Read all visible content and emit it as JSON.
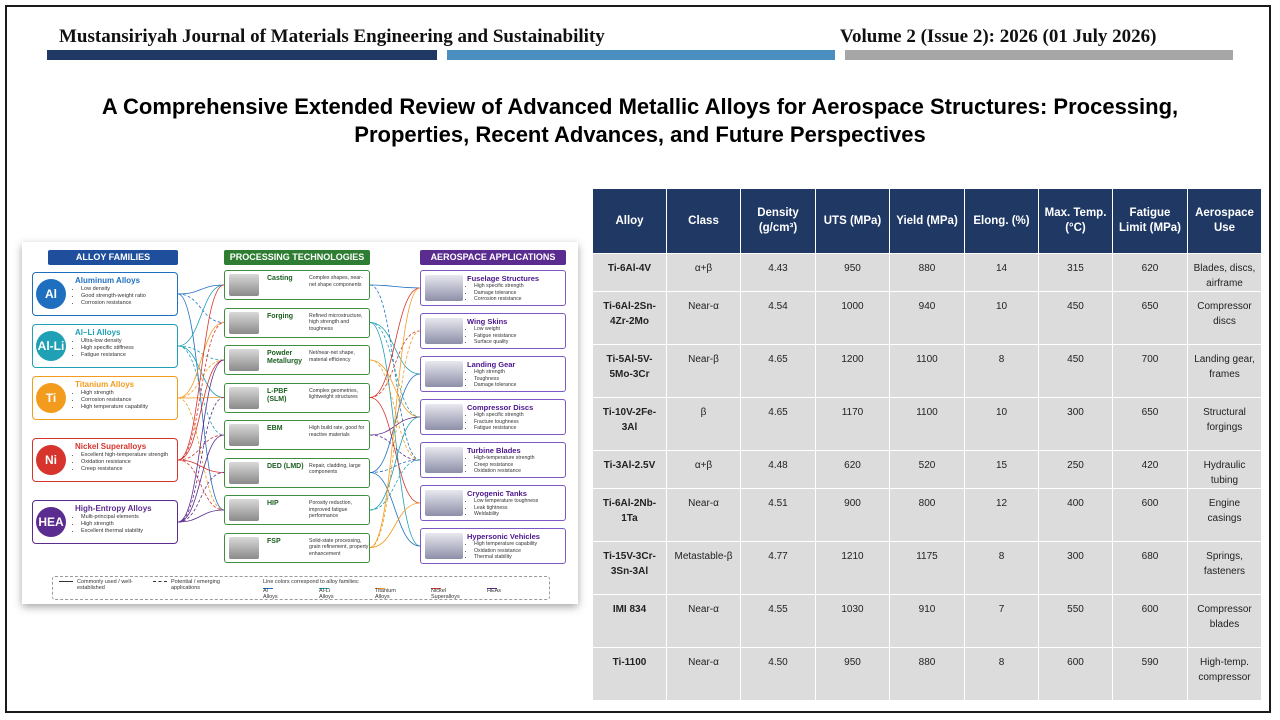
{
  "header": {
    "journal": "Mustansiriyah Journal of Materials Engineering and Sustainability",
    "volume": "Volume 2 (Issue 2): 2026 (01 July 2026)"
  },
  "title": "A Comprehensive Extended Review of Advanced Metallic Alloys for Aerospace Structures: Processing, Properties, Recent Advances, and Future Perspectives",
  "figure": {
    "headers": [
      "ALLOY FAMILIES",
      "PROCESSING TECHNOLOGIES",
      "AEROSPACE APPLICATIONS"
    ],
    "alloys": [
      {
        "badge": "Al",
        "name": "Aluminum Alloys",
        "color": "#1f6fc0",
        "points": [
          "Low density",
          "Good strength-weight ratio",
          "Corrosion resistance"
        ]
      },
      {
        "badge": "Al-Li",
        "name": "Al–Li Alloys",
        "color": "#1fa0b5",
        "points": [
          "Ultra-low density",
          "High specific stiffness",
          "Fatigue resistance"
        ]
      },
      {
        "badge": "Ti",
        "name": "Titanium Alloys",
        "color": "#f29b1d",
        "points": [
          "High strength",
          "Corrosion resistance",
          "High temperature capability"
        ]
      },
      {
        "badge": "Ni",
        "name": "Nickel Superalloys",
        "color": "#d6342c",
        "points": [
          "Excellent high-temperature strength",
          "Oxidation resistance",
          "Creep resistance"
        ]
      },
      {
        "badge": "HEA",
        "name": "High-Entropy Alloys",
        "color": "#5b2c8f",
        "points": [
          "Multi-principal elements",
          "High strength",
          "Excellent thermal stability"
        ]
      }
    ],
    "processes": [
      {
        "name": "Casting",
        "desc": "Complex shapes, near-net shape components",
        "icon": "casting-icon"
      },
      {
        "name": "Forging",
        "desc": "Refined microstructure, high strength and toughness",
        "icon": "forging-icon"
      },
      {
        "name": "Powder Metallurgy",
        "desc": "Net/near-net shape, material efficiency",
        "icon": "powder-icon"
      },
      {
        "name": "L-PBF (SLM)",
        "desc": "Complex geometries, lightweight structures",
        "icon": "laser-icon"
      },
      {
        "name": "EBM",
        "desc": "High build rate, good for reactive materials",
        "icon": "electron-beam-icon"
      },
      {
        "name": "DED (LMD)",
        "desc": "Repair, cladding, large components",
        "icon": "deposition-icon"
      },
      {
        "name": "HIP",
        "desc": "Porosity reduction, improved fatigue performance",
        "icon": "press-icon"
      },
      {
        "name": "FSP",
        "desc": "Solid-state processing, grain refinement, property enhancement",
        "icon": "friction-stir-icon"
      }
    ],
    "applications": [
      {
        "name": "Fuselage Structures",
        "points": [
          "High specific strength",
          "Damage tolerance",
          "Corrosion resistance"
        ]
      },
      {
        "name": "Wing Skins",
        "points": [
          "Low weight",
          "Fatigue resistance",
          "Surface quality"
        ]
      },
      {
        "name": "Landing Gear",
        "points": [
          "High strength",
          "Toughness",
          "Damage tolerance"
        ]
      },
      {
        "name": "Compressor Discs",
        "points": [
          "High specific strength",
          "Fracture toughness",
          "Fatigue resistance"
        ]
      },
      {
        "name": "Turbine Blades",
        "points": [
          "High-temperature strength",
          "Creep resistance",
          "Oxidation resistance"
        ]
      },
      {
        "name": "Cryogenic Tanks",
        "points": [
          "Low temperature toughness",
          "Leak tightness",
          "Weldability"
        ]
      },
      {
        "name": "Hypersonic Vehicles",
        "points": [
          "High temperature capability",
          "Oxidation resistance",
          "Thermal stability"
        ]
      }
    ],
    "legend": {
      "solid": "Commonly used / well-established",
      "dashed": "Potential / emerging applications",
      "note": "Line colors correspond to alloy families:",
      "items": [
        {
          "label": "Al Alloys",
          "color": "#1f6fc0"
        },
        {
          "label": "Al-Li Alloys",
          "color": "#1fa0b5"
        },
        {
          "label": "Titanium Alloys",
          "color": "#f29b1d"
        },
        {
          "label": "Nickel Superalloys",
          "color": "#d6342c"
        },
        {
          "label": "HEAs",
          "color": "#5b2c8f"
        }
      ]
    }
  },
  "table": {
    "headers": [
      "Alloy",
      "Class",
      "Density (g/cm³)",
      "UTS (MPa)",
      "Yield (MPa)",
      "Elong. (%)",
      "Max. Temp. (°C)",
      "Fatigue Limit (MPa)",
      "Aerospace Use"
    ],
    "rows": [
      [
        "Ti-6Al-4V",
        "α+β",
        "4.43",
        "950",
        "880",
        "14",
        "315",
        "620",
        "Blades, discs, airframe"
      ],
      [
        "Ti-6Al-2Sn-4Zr-2Mo",
        "Near-α",
        "4.54",
        "1000",
        "940",
        "10",
        "450",
        "650",
        "Compressor discs"
      ],
      [
        "Ti-5Al-5V-5Mo-3Cr",
        "Near-β",
        "4.65",
        "1200",
        "1100",
        "8",
        "450",
        "700",
        "Landing gear, frames"
      ],
      [
        "Ti-10V-2Fe-3Al",
        "β",
        "4.65",
        "1170",
        "1100",
        "10",
        "300",
        "650",
        "Structural forgings"
      ],
      [
        "Ti-3Al-2.5V",
        "α+β",
        "4.48",
        "620",
        "520",
        "15",
        "250",
        "420",
        "Hydraulic tubing"
      ],
      [
        "Ti-6Al-2Nb-1Ta",
        "Near-α",
        "4.51",
        "900",
        "800",
        "12",
        "400",
        "600",
        "Engine casings"
      ],
      [
        "Ti-15V-3Cr-3Sn-3Al",
        "Metastable-β",
        "4.77",
        "1210",
        "1175",
        "8",
        "300",
        "680",
        "Springs, fasteners"
      ],
      [
        "IMI 834",
        "Near-α",
        "4.55",
        "1030",
        "910",
        "7",
        "550",
        "600",
        "Compressor blades"
      ],
      [
        "Ti-1100",
        "Near-α",
        "4.50",
        "950",
        "880",
        "8",
        "600",
        "590",
        "High-temp. compressor"
      ]
    ]
  }
}
